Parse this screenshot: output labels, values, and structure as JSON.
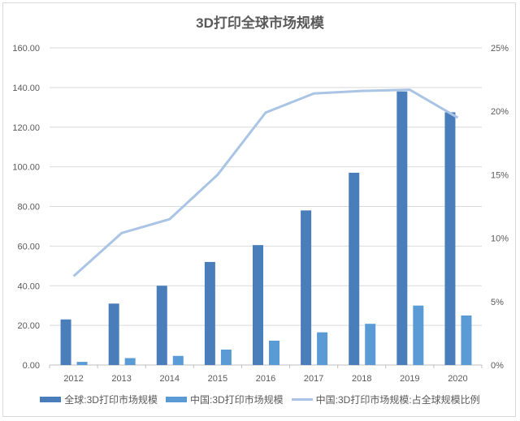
{
  "chart_data": {
    "type": "bar",
    "title": "3D打印全球市场规模",
    "categories": [
      "2012",
      "2013",
      "2014",
      "2015",
      "2016",
      "2017",
      "2018",
      "2019",
      "2020"
    ],
    "series": [
      {
        "name": "全球:3D打印市场规模",
        "type": "bar",
        "axis": "left",
        "color": "#4a7ebb",
        "values": [
          23.0,
          31.0,
          40.0,
          52.0,
          60.5,
          78.0,
          97.0,
          138.0,
          127.5
        ]
      },
      {
        "name": "中国:3D打印市场规模",
        "type": "bar",
        "axis": "left",
        "color": "#5b9bd5",
        "values": [
          1.6,
          3.5,
          4.6,
          7.8,
          12.3,
          16.5,
          20.8,
          30.0,
          25.0
        ]
      },
      {
        "name": "中国:3D打印市场规模:占全球规模比例",
        "type": "line",
        "axis": "right",
        "color": "#a9c4e4",
        "unit": "%",
        "values": [
          7.0,
          10.4,
          11.5,
          15.0,
          19.9,
          21.4,
          21.6,
          21.7,
          19.5
        ]
      }
    ],
    "xlabel": "",
    "ylabel": "",
    "y_left": {
      "ylim": [
        0,
        160
      ],
      "ticks": [
        "0.00",
        "20.00",
        "40.00",
        "60.00",
        "80.00",
        "100.00",
        "120.00",
        "140.00",
        "160.00"
      ]
    },
    "y_right": {
      "ylim": [
        0,
        25
      ],
      "ticks": [
        "0%",
        "5%",
        "10%",
        "15%",
        "20%",
        "25%"
      ]
    },
    "grid": true,
    "legend_position": "bottom"
  }
}
